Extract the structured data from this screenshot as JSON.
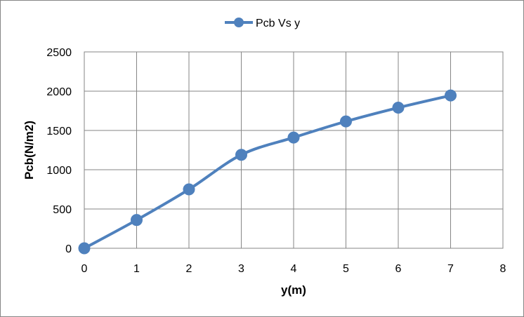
{
  "chart_data": {
    "type": "line",
    "title": "",
    "xlabel": "y(m)",
    "ylabel": "Pcb(N/m2)",
    "xlim": [
      0,
      8
    ],
    "ylim": [
      0,
      2500
    ],
    "x_ticks": [
      0,
      1,
      2,
      3,
      4,
      5,
      6,
      7,
      8
    ],
    "y_ticks": [
      0,
      500,
      1000,
      1500,
      2000,
      2500
    ],
    "grid": true,
    "legend": "top-center",
    "smooth": true,
    "series": [
      {
        "name": "Pcb Vs y",
        "color": "#4f81bd",
        "marker": "circle",
        "x": [
          0,
          1,
          2,
          3,
          4,
          5,
          6,
          7
        ],
        "y": [
          0,
          360,
          750,
          1190,
          1410,
          1615,
          1790,
          1945
        ]
      }
    ]
  }
}
